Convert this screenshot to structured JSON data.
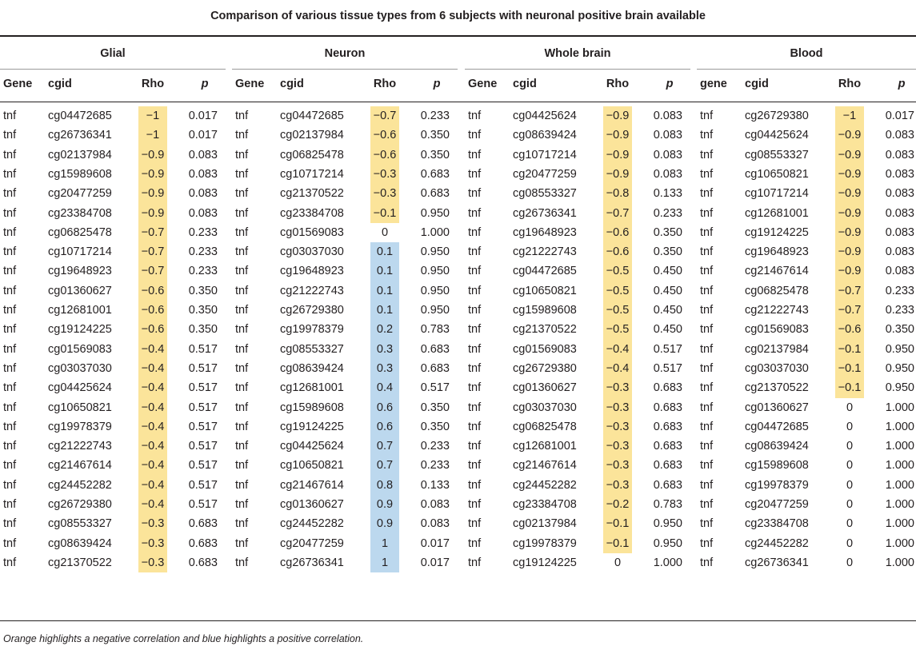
{
  "title": "Comparison of various tissue types from 6 subjects with neuronal positive brain available",
  "highlight_colors": {
    "negative": "#fbe49a",
    "positive": "#bcd8ee"
  },
  "groups": [
    {
      "name": "Glial",
      "headers": [
        "Gene",
        "cgid",
        "Rho",
        "p"
      ],
      "rows": [
        [
          "tnf",
          "cg04472685",
          "−1",
          "0.017"
        ],
        [
          "tnf",
          "cg26736341",
          "−1",
          "0.017"
        ],
        [
          "tnf",
          "cg02137984",
          "−0.9",
          "0.083"
        ],
        [
          "tnf",
          "cg15989608",
          "−0.9",
          "0.083"
        ],
        [
          "tnf",
          "cg20477259",
          "−0.9",
          "0.083"
        ],
        [
          "tnf",
          "cg23384708",
          "−0.9",
          "0.083"
        ],
        [
          "tnf",
          "cg06825478",
          "−0.7",
          "0.233"
        ],
        [
          "tnf",
          "cg10717214",
          "−0.7",
          "0.233"
        ],
        [
          "tnf",
          "cg19648923",
          "−0.7",
          "0.233"
        ],
        [
          "tnf",
          "cg01360627",
          "−0.6",
          "0.350"
        ],
        [
          "tnf",
          "cg12681001",
          "−0.6",
          "0.350"
        ],
        [
          "tnf",
          "cg19124225",
          "−0.6",
          "0.350"
        ],
        [
          "tnf",
          "cg01569083",
          "−0.4",
          "0.517"
        ],
        [
          "tnf",
          "cg03037030",
          "−0.4",
          "0.517"
        ],
        [
          "tnf",
          "cg04425624",
          "−0.4",
          "0.517"
        ],
        [
          "tnf",
          "cg10650821",
          "−0.4",
          "0.517"
        ],
        [
          "tnf",
          "cg19978379",
          "−0.4",
          "0.517"
        ],
        [
          "tnf",
          "cg21222743",
          "−0.4",
          "0.517"
        ],
        [
          "tnf",
          "cg21467614",
          "−0.4",
          "0.517"
        ],
        [
          "tnf",
          "cg24452282",
          "−0.4",
          "0.517"
        ],
        [
          "tnf",
          "cg26729380",
          "−0.4",
          "0.517"
        ],
        [
          "tnf",
          "cg08553327",
          "−0.3",
          "0.683"
        ],
        [
          "tnf",
          "cg08639424",
          "−0.3",
          "0.683"
        ],
        [
          "tnf",
          "cg21370522",
          "−0.3",
          "0.683"
        ]
      ]
    },
    {
      "name": "Neuron",
      "headers": [
        "Gene",
        "cgid",
        "Rho",
        "p"
      ],
      "rows": [
        [
          "tnf",
          "cg04472685",
          "−0.7",
          "0.233"
        ],
        [
          "tnf",
          "cg02137984",
          "−0.6",
          "0.350"
        ],
        [
          "tnf",
          "cg06825478",
          "−0.6",
          "0.350"
        ],
        [
          "tnf",
          "cg10717214",
          "−0.3",
          "0.683"
        ],
        [
          "tnf",
          "cg21370522",
          "−0.3",
          "0.683"
        ],
        [
          "tnf",
          "cg23384708",
          "−0.1",
          "0.950"
        ],
        [
          "tnf",
          "cg01569083",
          "0",
          "1.000"
        ],
        [
          "tnf",
          "cg03037030",
          "0.1",
          "0.950"
        ],
        [
          "tnf",
          "cg19648923",
          "0.1",
          "0.950"
        ],
        [
          "tnf",
          "cg21222743",
          "0.1",
          "0.950"
        ],
        [
          "tnf",
          "cg26729380",
          "0.1",
          "0.950"
        ],
        [
          "tnf",
          "cg19978379",
          "0.2",
          "0.783"
        ],
        [
          "tnf",
          "cg08553327",
          "0.3",
          "0.683"
        ],
        [
          "tnf",
          "cg08639424",
          "0.3",
          "0.683"
        ],
        [
          "tnf",
          "cg12681001",
          "0.4",
          "0.517"
        ],
        [
          "tnf",
          "cg15989608",
          "0.6",
          "0.350"
        ],
        [
          "tnf",
          "cg19124225",
          "0.6",
          "0.350"
        ],
        [
          "tnf",
          "cg04425624",
          "0.7",
          "0.233"
        ],
        [
          "tnf",
          "cg10650821",
          "0.7",
          "0.233"
        ],
        [
          "tnf",
          "cg21467614",
          "0.8",
          "0.133"
        ],
        [
          "tnf",
          "cg01360627",
          "0.9",
          "0.083"
        ],
        [
          "tnf",
          "cg24452282",
          "0.9",
          "0.083"
        ],
        [
          "tnf",
          "cg20477259",
          "1",
          "0.017"
        ],
        [
          "tnf",
          "cg26736341",
          "1",
          "0.017"
        ]
      ]
    },
    {
      "name": "Whole brain",
      "headers": [
        "Gene",
        "cgid",
        "Rho",
        "p"
      ],
      "rows": [
        [
          "tnf",
          "cg04425624",
          "−0.9",
          "0.083"
        ],
        [
          "tnf",
          "cg08639424",
          "−0.9",
          "0.083"
        ],
        [
          "tnf",
          "cg10717214",
          "−0.9",
          "0.083"
        ],
        [
          "tnf",
          "cg20477259",
          "−0.9",
          "0.083"
        ],
        [
          "tnf",
          "cg08553327",
          "−0.8",
          "0.133"
        ],
        [
          "tnf",
          "cg26736341",
          "−0.7",
          "0.233"
        ],
        [
          "tnf",
          "cg19648923",
          "−0.6",
          "0.350"
        ],
        [
          "tnf",
          "cg21222743",
          "−0.6",
          "0.350"
        ],
        [
          "tnf",
          "cg04472685",
          "−0.5",
          "0.450"
        ],
        [
          "tnf",
          "cg10650821",
          "−0.5",
          "0.450"
        ],
        [
          "tnf",
          "cg15989608",
          "−0.5",
          "0.450"
        ],
        [
          "tnf",
          "cg21370522",
          "−0.5",
          "0.450"
        ],
        [
          "tnf",
          "cg01569083",
          "−0.4",
          "0.517"
        ],
        [
          "tnf",
          "cg26729380",
          "−0.4",
          "0.517"
        ],
        [
          "tnf",
          "cg01360627",
          "−0.3",
          "0.683"
        ],
        [
          "tnf",
          "cg03037030",
          "−0.3",
          "0.683"
        ],
        [
          "tnf",
          "cg06825478",
          "−0.3",
          "0.683"
        ],
        [
          "tnf",
          "cg12681001",
          "−0.3",
          "0.683"
        ],
        [
          "tnf",
          "cg21467614",
          "−0.3",
          "0.683"
        ],
        [
          "tnf",
          "cg24452282",
          "−0.3",
          "0.683"
        ],
        [
          "tnf",
          "cg23384708",
          "−0.2",
          "0.783"
        ],
        [
          "tnf",
          "cg02137984",
          "−0.1",
          "0.950"
        ],
        [
          "tnf",
          "cg19978379",
          "−0.1",
          "0.950"
        ],
        [
          "tnf",
          "cg19124225",
          "0",
          "1.000"
        ]
      ]
    },
    {
      "name": "Blood",
      "headers": [
        "gene",
        "cgid",
        "Rho",
        "p"
      ],
      "rows": [
        [
          "tnf",
          "cg26729380",
          "−1",
          "0.017"
        ],
        [
          "tnf",
          "cg04425624",
          "−0.9",
          "0.083"
        ],
        [
          "tnf",
          "cg08553327",
          "−0.9",
          "0.083"
        ],
        [
          "tnf",
          "cg10650821",
          "−0.9",
          "0.083"
        ],
        [
          "tnf",
          "cg10717214",
          "−0.9",
          "0.083"
        ],
        [
          "tnf",
          "cg12681001",
          "−0.9",
          "0.083"
        ],
        [
          "tnf",
          "cg19124225",
          "−0.9",
          "0.083"
        ],
        [
          "tnf",
          "cg19648923",
          "−0.9",
          "0.083"
        ],
        [
          "tnf",
          "cg21467614",
          "−0.9",
          "0.083"
        ],
        [
          "tnf",
          "cg06825478",
          "−0.7",
          "0.233"
        ],
        [
          "tnf",
          "cg21222743",
          "−0.7",
          "0.233"
        ],
        [
          "tnf",
          "cg01569083",
          "−0.6",
          "0.350"
        ],
        [
          "tnf",
          "cg02137984",
          "−0.1",
          "0.950"
        ],
        [
          "tnf",
          "cg03037030",
          "−0.1",
          "0.950"
        ],
        [
          "tnf",
          "cg21370522",
          "−0.1",
          "0.950"
        ],
        [
          "tnf",
          "cg01360627",
          "0",
          "1.000"
        ],
        [
          "tnf",
          "cg04472685",
          "0",
          "1.000"
        ],
        [
          "tnf",
          "cg08639424",
          "0",
          "1.000"
        ],
        [
          "tnf",
          "cg15989608",
          "0",
          "1.000"
        ],
        [
          "tnf",
          "cg19978379",
          "0",
          "1.000"
        ],
        [
          "tnf",
          "cg20477259",
          "0",
          "1.000"
        ],
        [
          "tnf",
          "cg23384708",
          "0",
          "1.000"
        ],
        [
          "tnf",
          "cg24452282",
          "0",
          "1.000"
        ],
        [
          "tnf",
          "cg26736341",
          "0",
          "1.000"
        ]
      ]
    }
  ],
  "footnote": "Orange highlights a negative correlation and blue highlights a positive correlation."
}
